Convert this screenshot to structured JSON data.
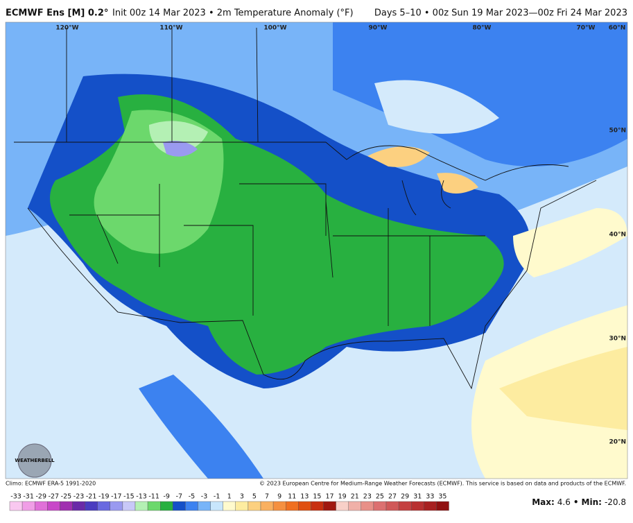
{
  "header": {
    "model": "ECMWF Ens [M] 0.2°",
    "subtitle": "Init 00z 14 Mar 2023 • 2m Temperature Anomaly (°F)",
    "valid": "Days 5–10 • 00z Sun 19 Mar 2023—00z Fri 24 Mar 2023"
  },
  "map": {
    "lon_labels": [
      "120°W",
      "110°W",
      "100°W",
      "90°W",
      "80°W",
      "70°W",
      "60°N"
    ],
    "lat_labels": [
      "50°N",
      "40°N",
      "30°N",
      "20°N"
    ],
    "logo": "WEATHERBELL"
  },
  "footer": {
    "climo": "Climo: ECMWF ERA-5 1991-2020",
    "copyright": "© 2023 European Centre for Medium-Range Weather Forecasts (ECMWF). This service is based on data and products of the ECMWF."
  },
  "colorbar": {
    "values": [
      -33,
      -31,
      -29,
      -27,
      -25,
      -23,
      -21,
      -19,
      -17,
      -15,
      -13,
      -11,
      -9,
      -7,
      -5,
      -3,
      -1,
      1,
      3,
      5,
      7,
      9,
      11,
      13,
      15,
      17,
      19,
      21,
      23,
      25,
      27,
      29,
      31,
      33,
      35
    ],
    "colors": [
      "#f9c8f0",
      "#f09ee6",
      "#e070d8",
      "#c848c8",
      "#a030b0",
      "#6a2aa8",
      "#4a3cc0",
      "#6a6ae0",
      "#9a9af0",
      "#c8c8f8",
      "#b4f0b4",
      "#6cd86c",
      "#28b040",
      "#1450c8",
      "#3c82f0",
      "#78b4f8",
      "#c8e6fc",
      "#fffacd",
      "#fdeca0",
      "#fcd080",
      "#f9b060",
      "#f59040",
      "#f07020",
      "#e05010",
      "#c83010",
      "#a01810",
      "#f8d0c8",
      "#f0b0a8",
      "#e89088",
      "#dc7070",
      "#d05858",
      "#c44040",
      "#b83030",
      "#a82020",
      "#901010"
    ]
  },
  "stats": {
    "max_label": "Max:",
    "max": 4.6,
    "separator": "•",
    "min_label": "Min:",
    "min": -20.8
  }
}
